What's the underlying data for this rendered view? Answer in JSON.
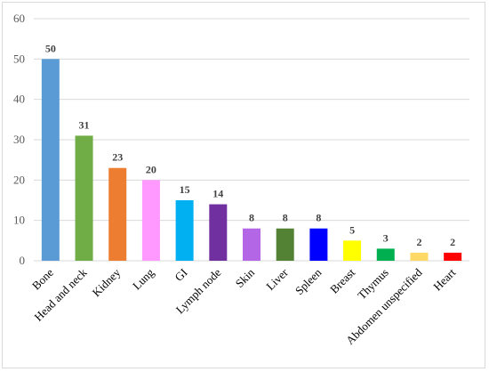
{
  "chart_data": {
    "type": "bar",
    "title": "",
    "xlabel": "",
    "ylabel": "",
    "ylim": [
      0,
      60
    ],
    "yticks": [
      0,
      10,
      20,
      30,
      40,
      50,
      60
    ],
    "grid": true,
    "legend": "none",
    "categories": [
      "Bone",
      "Head and neck",
      "Kidney",
      "Lung",
      "GI",
      "Lymph node",
      "Skin",
      "Liver",
      "Spleen",
      "Breast",
      "Thymus",
      "Abdomen unspecified",
      "Heart"
    ],
    "values": [
      50,
      31,
      23,
      20,
      15,
      14,
      8,
      8,
      8,
      5,
      3,
      2,
      2
    ],
    "colors": [
      "#5b9bd5",
      "#70ad47",
      "#ed7d31",
      "#ff99ff",
      "#00b0f0",
      "#7030a0",
      "#b366e6",
      "#548235",
      "#0000ff",
      "#ffff00",
      "#00b050",
      "#ffd966",
      "#ff0000"
    ]
  }
}
